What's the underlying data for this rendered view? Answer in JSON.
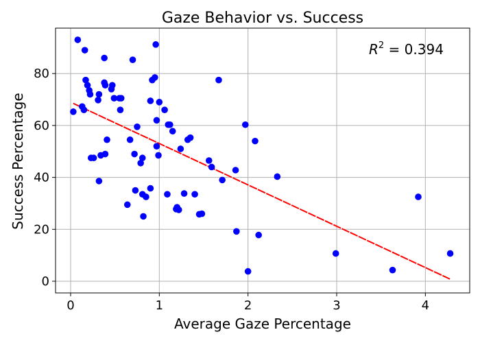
{
  "chart_data": {
    "type": "scatter",
    "title": "Gaze Behavior vs. Success",
    "xlabel": "Average Gaze Percentage",
    "ylabel": "Success Percentage",
    "xlim": [
      -0.17,
      4.5
    ],
    "ylim": [
      -4.5,
      97.5
    ],
    "x_ticks": [
      0,
      1,
      2,
      3,
      4
    ],
    "x_tick_labels": [
      "0",
      "1",
      "2",
      "3",
      "4"
    ],
    "y_ticks": [
      0,
      20,
      40,
      60,
      80
    ],
    "y_tick_labels": [
      "0",
      "20",
      "40",
      "60",
      "80"
    ],
    "grid": true,
    "point_color": "#0000ff",
    "fit_color": "#ff0000",
    "annotation": {
      "prefix": "R",
      "superscript": "2",
      "text": " = 0.394"
    },
    "fit_line": {
      "x": [
        0.03,
        4.28
      ],
      "y": [
        68.5,
        0.8
      ]
    },
    "points": [
      [
        0.03,
        65.3
      ],
      [
        0.08,
        93
      ],
      [
        0.13,
        67.3
      ],
      [
        0.15,
        66
      ],
      [
        0.16,
        89
      ],
      [
        0.17,
        77.5
      ],
      [
        0.19,
        75.5
      ],
      [
        0.21,
        73.5
      ],
      [
        0.22,
        72
      ],
      [
        0.23,
        47.5
      ],
      [
        0.26,
        47.5
      ],
      [
        0.31,
        69.8
      ],
      [
        0.32,
        72
      ],
      [
        0.32,
        38.6
      ],
      [
        0.34,
        48.5
      ],
      [
        0.38,
        86
      ],
      [
        0.38,
        76.5
      ],
      [
        0.39,
        75.5
      ],
      [
        0.39,
        49
      ],
      [
        0.41,
        54.5
      ],
      [
        0.46,
        74
      ],
      [
        0.47,
        75.5
      ],
      [
        0.49,
        70.5
      ],
      [
        0.55,
        70.5
      ],
      [
        0.56,
        66
      ],
      [
        0.57,
        70.5
      ],
      [
        0.64,
        29.5
      ],
      [
        0.67,
        54.5
      ],
      [
        0.7,
        85.3
      ],
      [
        0.72,
        49
      ],
      [
        0.73,
        35
      ],
      [
        0.75,
        59.5
      ],
      [
        0.79,
        45.5
      ],
      [
        0.81,
        47.5
      ],
      [
        0.81,
        33.5
      ],
      [
        0.82,
        25
      ],
      [
        0.85,
        32.5
      ],
      [
        0.9,
        69.5
      ],
      [
        0.9,
        35.8
      ],
      [
        0.92,
        77.5
      ],
      [
        0.95,
        78.5
      ],
      [
        0.96,
        91.2
      ],
      [
        0.97,
        62
      ],
      [
        0.97,
        52
      ],
      [
        0.99,
        48.5
      ],
      [
        1.0,
        69
      ],
      [
        1.06,
        66
      ],
      [
        1.09,
        33.5
      ],
      [
        1.1,
        60.3
      ],
      [
        1.12,
        60.3
      ],
      [
        1.15,
        57.8
      ],
      [
        1.19,
        27.8
      ],
      [
        1.2,
        28.5
      ],
      [
        1.22,
        27.5
      ],
      [
        1.24,
        51
      ],
      [
        1.28,
        33.8
      ],
      [
        1.32,
        54.5
      ],
      [
        1.35,
        55.3
      ],
      [
        1.4,
        33.5
      ],
      [
        1.45,
        25.8
      ],
      [
        1.48,
        26
      ],
      [
        1.56,
        46.5
      ],
      [
        1.59,
        44
      ],
      [
        1.67,
        77.5
      ],
      [
        1.71,
        39
      ],
      [
        1.86,
        42.8
      ],
      [
        1.87,
        19.2
      ],
      [
        1.97,
        60.3
      ],
      [
        2.0,
        3.8
      ],
      [
        2.08,
        54
      ],
      [
        2.12,
        17.8
      ],
      [
        2.33,
        40.3
      ],
      [
        2.99,
        10.7
      ],
      [
        3.63,
        4.3
      ],
      [
        3.92,
        32.5
      ],
      [
        4.28,
        10.7
      ]
    ]
  }
}
